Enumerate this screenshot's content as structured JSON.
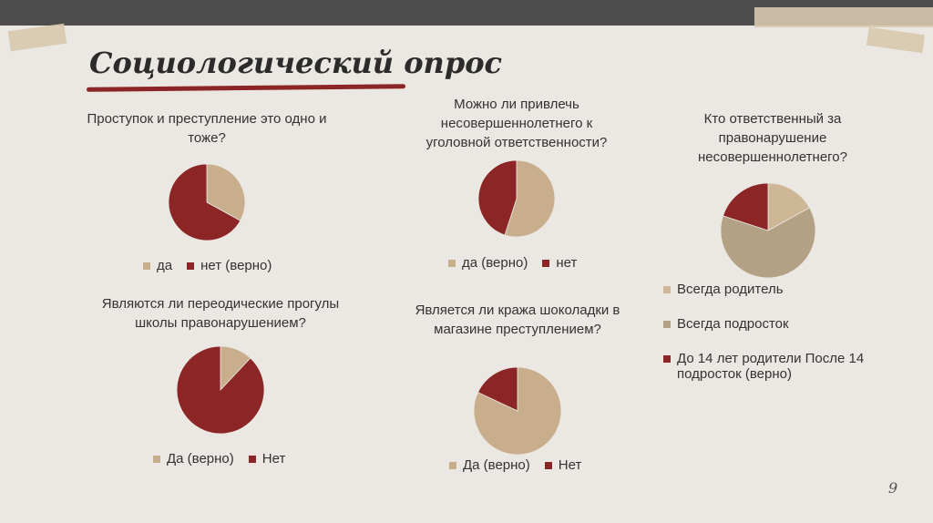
{
  "title": "Социологический опрос",
  "page_number": "9",
  "chart_data": [
    {
      "type": "pie",
      "title": "Проступок и преступление это одно и тоже?",
      "labels": [
        "да",
        "нет (верно)"
      ],
      "values": [
        33,
        67
      ],
      "colors": [
        "#c8ae8c",
        "#8c2626"
      ],
      "legend": "bottom-row"
    },
    {
      "type": "pie",
      "title": "Можно ли привлечь несовершеннолетнего к уголовной ответственности?",
      "labels": [
        "да (верно)",
        "нет"
      ],
      "values": [
        55,
        45
      ],
      "colors": [
        "#c8ae8c",
        "#8c2626"
      ],
      "legend": "bottom-row"
    },
    {
      "type": "pie",
      "title": "Кто ответственный за правонарушение несовершеннолетнего?",
      "labels": [
        "Всегда родитель",
        "Всегда подросток",
        "До 14 лет родители После 14 подросток (верно)"
      ],
      "values": [
        17,
        63,
        20
      ],
      "colors": [
        "#cdb797",
        "#b3a185",
        "#8c2626"
      ],
      "legend": "bottom-column"
    },
    {
      "type": "pie",
      "title": "Являются ли переодические прогулы школы правонарушением?",
      "labels": [
        "Да (верно)",
        "Нет"
      ],
      "values": [
        12,
        88
      ],
      "colors": [
        "#c8ae8c",
        "#8c2626"
      ],
      "legend": "bottom-row"
    },
    {
      "type": "pie",
      "title": "Является ли кража шоколадки в магазине преступлением?",
      "labels": [
        "Да (верно)",
        "Нет"
      ],
      "values": [
        82,
        18
      ],
      "colors": [
        "#c8ae8c",
        "#8c2626"
      ],
      "legend": "bottom-row"
    }
  ]
}
